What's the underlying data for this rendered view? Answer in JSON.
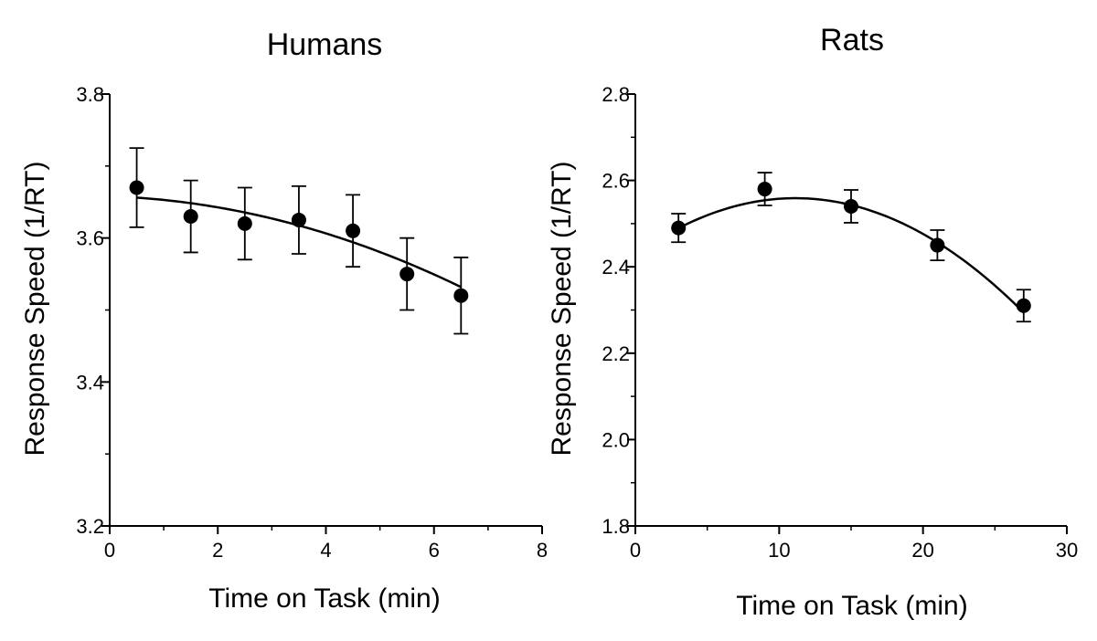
{
  "chart_data": [
    {
      "type": "scatter",
      "title": "Humans",
      "xlabel": "Time on Task (min)",
      "ylabel": "Response Speed (1/RT)",
      "xlim": [
        0,
        8
      ],
      "ylim": [
        3.2,
        3.8
      ],
      "x_ticks": [
        "0",
        "2",
        "4",
        "6",
        "8"
      ],
      "y_ticks": [
        "3.2",
        "3.4",
        "3.6",
        "3.8"
      ],
      "x_minor_step": 1,
      "y_minor_step": 0.1,
      "series": [
        {
          "name": "Humans",
          "x": [
            0.5,
            1.5,
            2.5,
            3.5,
            4.5,
            5.5,
            6.5
          ],
          "y": [
            3.67,
            3.63,
            3.62,
            3.625,
            3.61,
            3.55,
            3.52
          ],
          "error": [
            0.055,
            0.05,
            0.05,
            0.047,
            0.05,
            0.05,
            0.053
          ]
        }
      ],
      "fit": {
        "type": "quadratic",
        "coefficients": [
          3.658,
          -0.0025,
          -0.0026
        ]
      },
      "grid": false,
      "legend": "none"
    },
    {
      "type": "scatter",
      "title": "Rats",
      "xlabel": "Time on Task (min)",
      "ylabel": "Response Speed (1/RT)",
      "xlim": [
        0,
        30
      ],
      "ylim": [
        1.8,
        2.8
      ],
      "x_ticks": [
        "0",
        "10",
        "20",
        "30"
      ],
      "y_ticks": [
        "1.8",
        "2.0",
        "2.2",
        "2.4",
        "2.6",
        "2.8"
      ],
      "x_minor_step": 5,
      "y_minor_step": 0.1,
      "series": [
        {
          "name": "Rats",
          "x": [
            3,
            9,
            15,
            21,
            27
          ],
          "y": [
            2.49,
            2.58,
            2.54,
            2.45,
            2.31
          ],
          "error": [
            0.033,
            0.038,
            0.038,
            0.035,
            0.037
          ]
        }
      ],
      "fit": {
        "type": "quadratic",
        "coefficients": [
          2.4286,
          0.02341,
          -0.0010516
        ]
      },
      "grid": false,
      "legend": "none"
    }
  ]
}
